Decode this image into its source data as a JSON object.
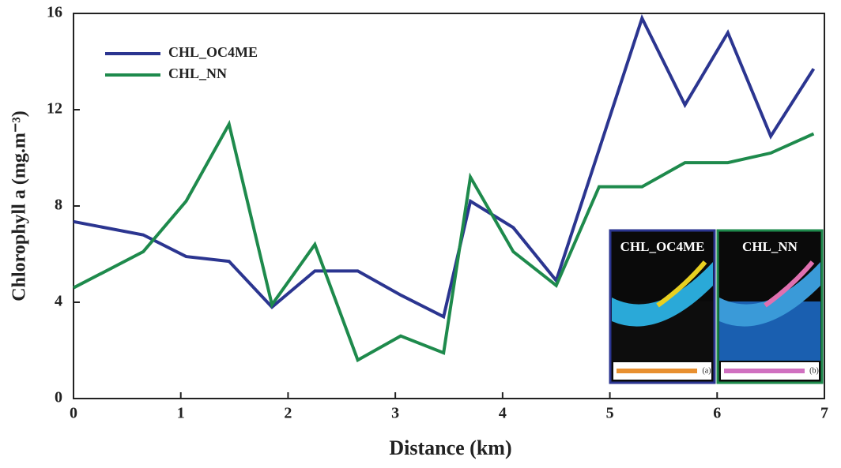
{
  "chart_data": {
    "type": "line",
    "x_label": "Distance (km)",
    "y_label": "Chlorophyll a (mg.m⁻³)",
    "xlim": [
      0,
      7
    ],
    "xticks": [
      0,
      1,
      2,
      3,
      4,
      5,
      6,
      7
    ],
    "ylim": [
      0,
      16
    ],
    "yticks": [
      0,
      4,
      8,
      12,
      16
    ],
    "legend": "upper left",
    "series": [
      {
        "name": "CHL_OC4ME",
        "color": "#2b3590",
        "x": [
          0,
          0.65,
          1.05,
          1.45,
          1.85,
          2.25,
          2.65,
          3.05,
          3.45,
          3.7,
          4.1,
          4.5,
          5.3,
          5.7,
          6.1,
          6.5,
          6.9
        ],
        "values": [
          7.35,
          6.8,
          5.9,
          5.7,
          3.8,
          5.3,
          5.3,
          4.3,
          3.4,
          8.2,
          7.1,
          4.9,
          15.8,
          12.2,
          15.2,
          10.9,
          13.7
        ]
      },
      {
        "name": "CHL_NN",
        "color": "#1e8a4c",
        "x": [
          0,
          0.65,
          1.05,
          1.45,
          1.85,
          2.25,
          2.65,
          3.05,
          3.45,
          3.7,
          4.1,
          4.5,
          4.9,
          5.3,
          5.7,
          6.1,
          6.5,
          6.9
        ],
        "values": [
          4.6,
          6.1,
          8.2,
          11.4,
          3.9,
          6.4,
          1.6,
          2.6,
          1.9,
          9.2,
          6.1,
          4.7,
          8.8,
          8.8,
          9.8,
          9.8,
          10.2,
          11.0
        ]
      }
    ],
    "insets": [
      {
        "title": "CHL_OC4ME",
        "tag": "(a)"
      },
      {
        "title": "CHL_NN",
        "tag": "(b)"
      }
    ]
  }
}
